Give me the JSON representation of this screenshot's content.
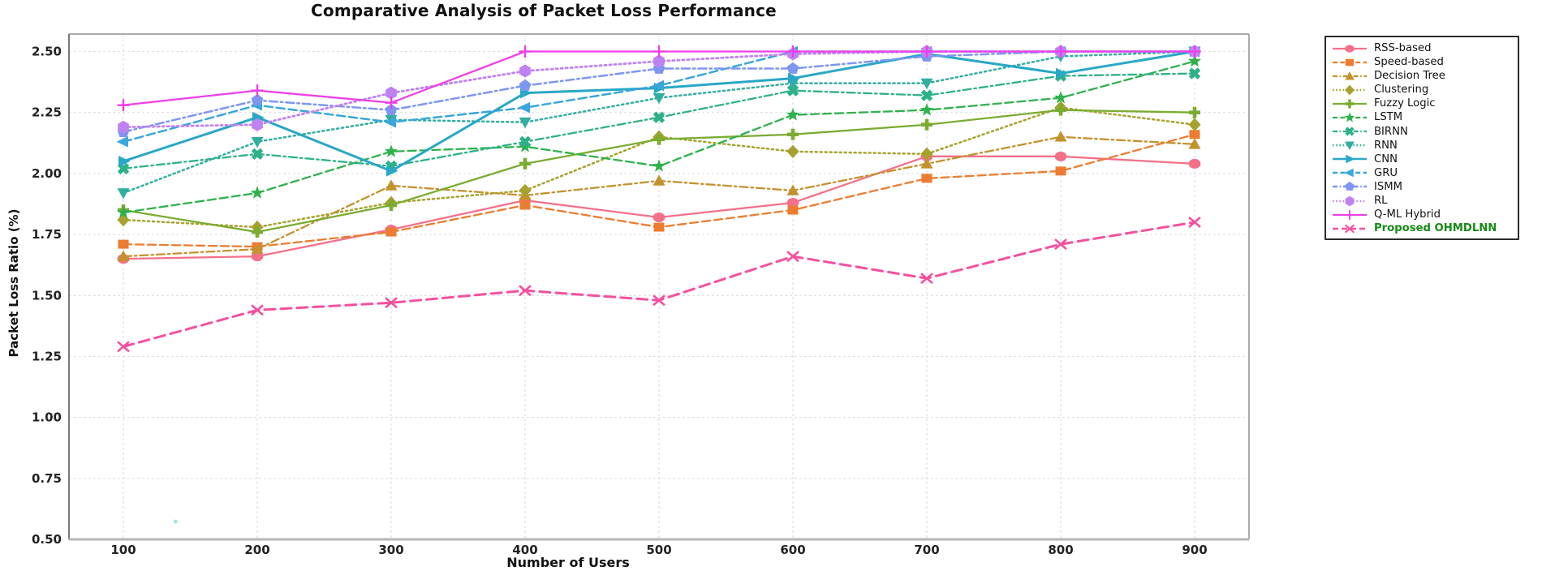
{
  "title": "Comparative Analysis of Packet Loss Performance",
  "xlabel": "Number of Users",
  "ylabel": "Packet Loss Ratio (%)",
  "proposed_label_color": "#168a16",
  "grid_color": "#e0e0e0",
  "chart_data": {
    "type": "line",
    "x": [
      100,
      200,
      300,
      400,
      500,
      600,
      700,
      800,
      900
    ],
    "x_tick_labels": [
      "100",
      "200",
      "300",
      "400",
      "500",
      "600",
      "700",
      "800",
      "900"
    ],
    "y_tick_labels": [
      "0.50",
      "0.75",
      "1.00",
      "1.25",
      "1.50",
      "1.75",
      "2.00",
      "2.25",
      "2.50"
    ],
    "ylim": [
      0.5,
      2.5
    ],
    "grid": true,
    "legend_position": "outside-right",
    "series": [
      {
        "name": "RSS-based",
        "color": "#f3708a",
        "style": "solid",
        "marker": "circle",
        "width": 2.3,
        "values": [
          1.65,
          1.66,
          1.77,
          1.89,
          1.82,
          1.88,
          2.07,
          2.07,
          2.04
        ]
      },
      {
        "name": "Speed-based",
        "color": "#ec7c2f",
        "style": "dashed",
        "marker": "square",
        "width": 2.3,
        "values": [
          1.71,
          1.7,
          1.76,
          1.87,
          1.78,
          1.85,
          1.98,
          2.01,
          2.16
        ]
      },
      {
        "name": "Decision Tree",
        "color": "#c3922e",
        "style": "dashdot",
        "marker": "triangle-up",
        "width": 2.3,
        "values": [
          1.66,
          1.69,
          1.95,
          1.91,
          1.97,
          1.93,
          2.04,
          2.15,
          2.12
        ]
      },
      {
        "name": "Clustering",
        "color": "#a7a22e",
        "style": "dotted",
        "marker": "diamond",
        "width": 2.5,
        "values": [
          1.81,
          1.78,
          1.88,
          1.93,
          2.15,
          2.09,
          2.08,
          2.27,
          2.2
        ]
      },
      {
        "name": "Fuzzy Logic",
        "color": "#7bac31",
        "style": "solid",
        "marker": "plus-filled",
        "width": 2.3,
        "values": [
          1.85,
          1.76,
          1.87,
          2.04,
          2.14,
          2.16,
          2.2,
          2.26,
          2.25
        ]
      },
      {
        "name": "LSTM",
        "color": "#2fb14c",
        "style": "dashed",
        "marker": "star",
        "width": 2.3,
        "values": [
          1.84,
          1.92,
          2.09,
          2.11,
          2.03,
          2.24,
          2.26,
          2.31,
          2.46
        ]
      },
      {
        "name": "BIRNN",
        "color": "#2db189",
        "style": "dashdot",
        "marker": "x-filled",
        "width": 2.3,
        "values": [
          2.02,
          2.08,
          2.03,
          2.13,
          2.23,
          2.34,
          2.32,
          2.4,
          2.41
        ]
      },
      {
        "name": "RNN",
        "color": "#31ae9f",
        "style": "dotted",
        "marker": "triangle-down",
        "width": 2.5,
        "values": [
          1.92,
          2.13,
          2.22,
          2.21,
          2.31,
          2.37,
          2.37,
          2.48,
          2.5
        ]
      },
      {
        "name": "CNN",
        "color": "#29a7c6",
        "style": "solid",
        "marker": "triangle-right",
        "width": 3.0,
        "values": [
          2.05,
          2.23,
          2.01,
          2.33,
          2.35,
          2.39,
          2.49,
          2.41,
          2.5
        ]
      },
      {
        "name": "GRU",
        "color": "#39a6dc",
        "style": "dashed",
        "marker": "triangle-left",
        "width": 2.5,
        "values": [
          2.13,
          2.28,
          2.21,
          2.27,
          2.36,
          2.5,
          2.5,
          2.5,
          2.5
        ]
      },
      {
        "name": "ISMM",
        "color": "#7e96f2",
        "style": "dashdot",
        "marker": "pentagon",
        "width": 2.5,
        "values": [
          2.17,
          2.3,
          2.26,
          2.36,
          2.43,
          2.43,
          2.48,
          2.5,
          2.5
        ]
      },
      {
        "name": "RL",
        "color": "#bf82f2",
        "style": "dotted",
        "marker": "hexagon",
        "width": 2.8,
        "values": [
          2.19,
          2.2,
          2.33,
          2.42,
          2.46,
          2.49,
          2.5,
          2.5,
          2.5
        ]
      },
      {
        "name": "Q-ML Hybrid",
        "color": "#ee3fe9",
        "style": "solid",
        "marker": "plus-line",
        "width": 2.3,
        "values": [
          2.28,
          2.34,
          2.29,
          2.5,
          2.5,
          2.5,
          2.5,
          2.5,
          2.5
        ]
      },
      {
        "name": "Proposed OHMDLNN",
        "color": "#f4509f",
        "style": "dashed-bold",
        "marker": "x-line",
        "width": 3.0,
        "values": [
          1.29,
          1.44,
          1.47,
          1.52,
          1.48,
          1.66,
          1.57,
          1.71,
          1.8
        ],
        "label_class": "proposed"
      }
    ],
    "artifact_dot": {
      "x": 139,
      "y": 0.573,
      "color": "#8edede"
    }
  }
}
